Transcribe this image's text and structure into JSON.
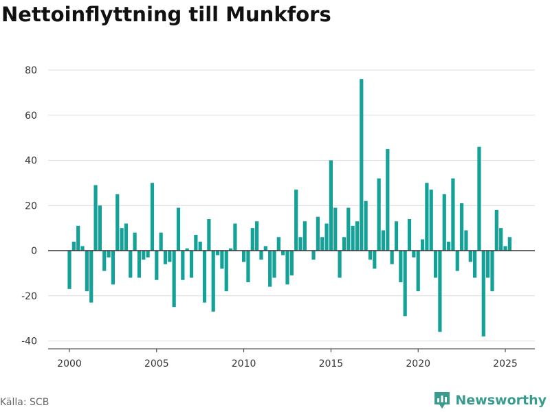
{
  "title": "Nettoinflyttning till Munkfors",
  "source": "Källa: SCB",
  "brand": {
    "name": "Newsworthy",
    "icon": "newsworthy-logo-icon",
    "color": "#3a9c8e"
  },
  "chart_data": {
    "type": "bar",
    "title": "Nettoinflyttning till Munkfors",
    "xlabel": "",
    "ylabel": "",
    "frequency": "quarterly",
    "first_quarter": "2000-Q1",
    "ylim": [
      -42,
      84
    ],
    "y_ticks": [
      80,
      60,
      40,
      20,
      0,
      -20,
      -40
    ],
    "x_ticks": [
      2000,
      2005,
      2010,
      2015,
      2020,
      2025
    ],
    "grid": true,
    "bar_color": "#13a198",
    "values": [
      -17,
      4,
      11,
      2,
      -18,
      -23,
      29,
      20,
      -9,
      -3,
      -15,
      25,
      10,
      12,
      -12,
      8,
      -12,
      -4,
      -3,
      30,
      -13,
      8,
      -6,
      -5,
      -25,
      19,
      -13,
      1,
      -12,
      7,
      4,
      -23,
      14,
      -27,
      -2,
      -8,
      -18,
      1,
      12,
      0,
      -5,
      -14,
      10,
      13,
      -4,
      2,
      -16,
      -12,
      6,
      -2,
      -15,
      -11,
      27,
      6,
      13,
      0,
      -4,
      15,
      6,
      12,
      40,
      19,
      -12,
      6,
      19,
      11,
      13,
      76,
      22,
      -4,
      -8,
      32,
      9,
      45,
      -6,
      13,
      -14,
      -29,
      14,
      -3,
      -18,
      5,
      30,
      27,
      -12,
      -36,
      25,
      4,
      32,
      -9,
      21,
      9,
      -5,
      -12,
      46,
      -38,
      -12,
      -18,
      18,
      10,
      2,
      6
    ]
  }
}
